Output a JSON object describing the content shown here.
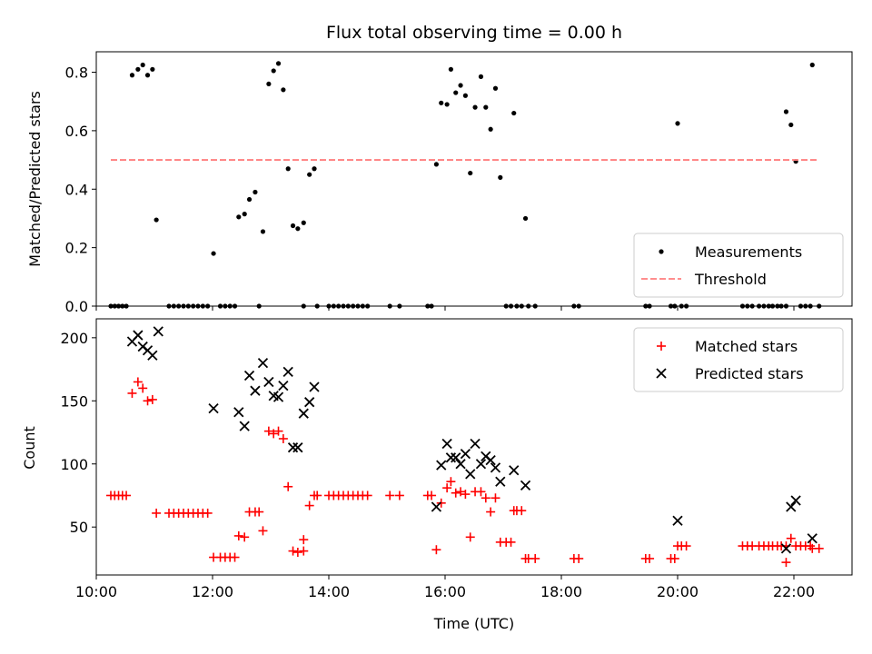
{
  "chart_data": [
    {
      "type": "scatter",
      "title": "Flux total observing time = 0.00 h",
      "xlabel": "",
      "ylabel": "Matched/Predicted stars",
      "xlim": [
        "10:00",
        "23:00"
      ],
      "ylim": [
        0,
        0.87
      ],
      "yticks": [
        0.0,
        0.2,
        0.4,
        0.6,
        0.8
      ],
      "ytick_labels": [
        "0.0",
        "0.2",
        "0.4",
        "0.6",
        "0.8"
      ],
      "legend_position": "lower-right",
      "series": [
        {
          "name": "Measurements",
          "marker": "dot",
          "color": "#000000",
          "points": [
            [
              "10:15",
              0
            ],
            [
              "10:19",
              0
            ],
            [
              "10:23",
              0
            ],
            [
              "10:27",
              0
            ],
            [
              "10:31",
              0
            ],
            [
              "10:37",
              0.79
            ],
            [
              "10:43",
              0.81
            ],
            [
              "10:48",
              0.825
            ],
            [
              "10:53",
              0.79
            ],
            [
              "10:58",
              0.81
            ],
            [
              "11:02",
              0.295
            ],
            [
              "11:15",
              0
            ],
            [
              "11:20",
              0
            ],
            [
              "11:25",
              0
            ],
            [
              "11:30",
              0
            ],
            [
              "11:35",
              0
            ],
            [
              "11:40",
              0
            ],
            [
              "11:45",
              0
            ],
            [
              "11:50",
              0
            ],
            [
              "11:55",
              0
            ],
            [
              "12:01",
              0.18
            ],
            [
              "12:08",
              0
            ],
            [
              "12:13",
              0
            ],
            [
              "12:18",
              0
            ],
            [
              "12:23",
              0
            ],
            [
              "12:27",
              0.305
            ],
            [
              "12:33",
              0.315
            ],
            [
              "12:38",
              0.365
            ],
            [
              "12:44",
              0.39
            ],
            [
              "12:48",
              0
            ],
            [
              "12:52",
              0.255
            ],
            [
              "12:58",
              0.76
            ],
            [
              "13:03",
              0.805
            ],
            [
              "13:08",
              0.83
            ],
            [
              "13:13",
              0.74
            ],
            [
              "13:18",
              0.47
            ],
            [
              "13:23",
              0.275
            ],
            [
              "13:28",
              0.265
            ],
            [
              "13:34",
              0.285
            ],
            [
              "13:34",
              0
            ],
            [
              "13:40",
              0.45
            ],
            [
              "13:45",
              0.47
            ],
            [
              "13:48",
              0
            ],
            [
              "14:00",
              0
            ],
            [
              "14:05",
              0
            ],
            [
              "14:10",
              0
            ],
            [
              "14:15",
              0
            ],
            [
              "14:20",
              0
            ],
            [
              "14:25",
              0
            ],
            [
              "14:30",
              0
            ],
            [
              "14:35",
              0
            ],
            [
              "14:40",
              0
            ],
            [
              "15:03",
              0
            ],
            [
              "15:13",
              0
            ],
            [
              "15:42",
              0
            ],
            [
              "15:46",
              0
            ],
            [
              "15:51",
              0.485
            ],
            [
              "15:56",
              0.695
            ],
            [
              "16:02",
              0.69
            ],
            [
              "16:06",
              0.81
            ],
            [
              "16:11",
              0.73
            ],
            [
              "16:16",
              0.755
            ],
            [
              "16:21",
              0.72
            ],
            [
              "16:26",
              0.455
            ],
            [
              "16:31",
              0.68
            ],
            [
              "16:37",
              0.785
            ],
            [
              "16:42",
              0.68
            ],
            [
              "16:47",
              0.605
            ],
            [
              "16:52",
              0.745
            ],
            [
              "16:57",
              0.44
            ],
            [
              "17:03",
              0
            ],
            [
              "17:08",
              0
            ],
            [
              "17:11",
              0.66
            ],
            [
              "17:14",
              0
            ],
            [
              "17:19",
              0
            ],
            [
              "17:23",
              0.3
            ],
            [
              "17:26",
              0
            ],
            [
              "17:33",
              0
            ],
            [
              "18:13",
              0
            ],
            [
              "18:18",
              0
            ],
            [
              "19:27",
              0
            ],
            [
              "19:31",
              0
            ],
            [
              "19:53",
              0
            ],
            [
              "19:57",
              0
            ],
            [
              "20:00",
              0.625
            ],
            [
              "20:04",
              0
            ],
            [
              "20:09",
              0
            ],
            [
              "21:07",
              0
            ],
            [
              "21:12",
              0
            ],
            [
              "21:17",
              0
            ],
            [
              "21:24",
              0
            ],
            [
              "21:29",
              0
            ],
            [
              "21:34",
              0
            ],
            [
              "21:38",
              0
            ],
            [
              "21:43",
              0
            ],
            [
              "21:47",
              0
            ],
            [
              "21:52",
              0
            ],
            [
              "21:52",
              0.665
            ],
            [
              "21:57",
              0.62
            ],
            [
              "22:02",
              0.495
            ],
            [
              "22:07",
              0
            ],
            [
              "22:12",
              0
            ],
            [
              "22:17",
              0
            ],
            [
              "22:19",
              0.825
            ],
            [
              "22:26",
              0
            ]
          ]
        },
        {
          "name": "Threshold",
          "marker": "dashed-line",
          "color": "#ff7f7f",
          "points": [
            [
              "10:15",
              0.5
            ],
            [
              "22:25",
              0.5
            ]
          ]
        }
      ]
    },
    {
      "type": "scatter",
      "title": "",
      "xlabel": "Time (UTC)",
      "ylabel": "Count",
      "xlim": [
        "10:00",
        "23:00"
      ],
      "ylim": [
        12,
        215
      ],
      "xticks": [
        "10:00",
        "12:00",
        "14:00",
        "16:00",
        "18:00",
        "20:00",
        "22:00"
      ],
      "yticks": [
        50,
        100,
        150,
        200
      ],
      "ytick_labels": [
        "50",
        "100",
        "150",
        "200"
      ],
      "legend_position": "upper-right",
      "series": [
        {
          "name": "Matched stars",
          "marker": "plus",
          "color": "#ff0000",
          "points": [
            [
              "10:15",
              75
            ],
            [
              "10:19",
              75
            ],
            [
              "10:23",
              75
            ],
            [
              "10:27",
              75
            ],
            [
              "10:31",
              75
            ],
            [
              "10:37",
              156
            ],
            [
              "10:43",
              165
            ],
            [
              "10:48",
              160
            ],
            [
              "10:53",
              150
            ],
            [
              "10:58",
              151
            ],
            [
              "11:02",
              61
            ],
            [
              "11:15",
              61
            ],
            [
              "11:20",
              61
            ],
            [
              "11:25",
              61
            ],
            [
              "11:30",
              61
            ],
            [
              "11:35",
              61
            ],
            [
              "11:40",
              61
            ],
            [
              "11:45",
              61
            ],
            [
              "11:50",
              61
            ],
            [
              "11:55",
              61
            ],
            [
              "12:01",
              26
            ],
            [
              "12:08",
              26
            ],
            [
              "12:13",
              26
            ],
            [
              "12:18",
              26
            ],
            [
              "12:23",
              26
            ],
            [
              "12:27",
              43
            ],
            [
              "12:33",
              42
            ],
            [
              "12:38",
              62
            ],
            [
              "12:44",
              62
            ],
            [
              "12:48",
              62
            ],
            [
              "12:52",
              47
            ],
            [
              "12:58",
              126
            ],
            [
              "13:03",
              124
            ],
            [
              "13:08",
              126
            ],
            [
              "13:13",
              120
            ],
            [
              "13:18",
              82
            ],
            [
              "13:23",
              31
            ],
            [
              "13:28",
              30
            ],
            [
              "13:34",
              40
            ],
            [
              "13:34",
              31
            ],
            [
              "13:40",
              67
            ],
            [
              "13:45",
              75
            ],
            [
              "13:48",
              75
            ],
            [
              "14:00",
              75
            ],
            [
              "14:05",
              75
            ],
            [
              "14:10",
              75
            ],
            [
              "14:15",
              75
            ],
            [
              "14:20",
              75
            ],
            [
              "14:25",
              75
            ],
            [
              "14:30",
              75
            ],
            [
              "14:35",
              75
            ],
            [
              "14:40",
              75
            ],
            [
              "15:03",
              75
            ],
            [
              "15:13",
              75
            ],
            [
              "15:42",
              75
            ],
            [
              "15:46",
              75
            ],
            [
              "15:51",
              32
            ],
            [
              "15:56",
              69
            ],
            [
              "16:02",
              81
            ],
            [
              "16:06",
              86
            ],
            [
              "16:11",
              77
            ],
            [
              "16:16",
              78
            ],
            [
              "16:21",
              76
            ],
            [
              "16:26",
              42
            ],
            [
              "16:31",
              78
            ],
            [
              "16:37",
              78
            ],
            [
              "16:42",
              73
            ],
            [
              "16:47",
              62
            ],
            [
              "16:52",
              73
            ],
            [
              "16:57",
              38
            ],
            [
              "17:03",
              38
            ],
            [
              "17:08",
              38
            ],
            [
              "17:11",
              63
            ],
            [
              "17:14",
              63
            ],
            [
              "17:19",
              63
            ],
            [
              "17:23",
              25
            ],
            [
              "17:26",
              25
            ],
            [
              "17:33",
              25
            ],
            [
              "18:13",
              25
            ],
            [
              "18:18",
              25
            ],
            [
              "19:27",
              25
            ],
            [
              "19:31",
              25
            ],
            [
              "19:53",
              25
            ],
            [
              "19:57",
              25
            ],
            [
              "20:00",
              35
            ],
            [
              "20:04",
              35
            ],
            [
              "20:09",
              35
            ],
            [
              "21:07",
              35
            ],
            [
              "21:12",
              35
            ],
            [
              "21:17",
              35
            ],
            [
              "21:24",
              35
            ],
            [
              "21:29",
              35
            ],
            [
              "21:34",
              35
            ],
            [
              "21:38",
              35
            ],
            [
              "21:43",
              35
            ],
            [
              "21:47",
              35
            ],
            [
              "21:52",
              35
            ],
            [
              "21:52",
              22
            ],
            [
              "21:57",
              41
            ],
            [
              "22:02",
              35
            ],
            [
              "22:07",
              35
            ],
            [
              "22:12",
              35
            ],
            [
              "22:17",
              35
            ],
            [
              "22:19",
              33
            ],
            [
              "22:26",
              33
            ]
          ]
        },
        {
          "name": "Predicted stars",
          "marker": "x",
          "color": "#000000",
          "points": [
            [
              "10:37",
              197
            ],
            [
              "10:43",
              202
            ],
            [
              "10:48",
              193
            ],
            [
              "10:53",
              190
            ],
            [
              "10:58",
              186
            ],
            [
              "11:04",
              205
            ],
            [
              "12:01",
              144
            ],
            [
              "12:27",
              141
            ],
            [
              "12:33",
              130
            ],
            [
              "12:38",
              170
            ],
            [
              "12:44",
              158
            ],
            [
              "12:52",
              180
            ],
            [
              "12:58",
              165
            ],
            [
              "13:03",
              154
            ],
            [
              "13:08",
              153
            ],
            [
              "13:13",
              162
            ],
            [
              "13:18",
              173
            ],
            [
              "13:23",
              113
            ],
            [
              "13:28",
              113
            ],
            [
              "13:34",
              140
            ],
            [
              "13:40",
              149
            ],
            [
              "13:45",
              161
            ],
            [
              "15:51",
              66
            ],
            [
              "15:56",
              99
            ],
            [
              "16:02",
              116
            ],
            [
              "16:06",
              105
            ],
            [
              "16:11",
              105
            ],
            [
              "16:16",
              100
            ],
            [
              "16:21",
              108
            ],
            [
              "16:26",
              92
            ],
            [
              "16:31",
              116
            ],
            [
              "16:37",
              100
            ],
            [
              "16:42",
              106
            ],
            [
              "16:47",
              103
            ],
            [
              "16:52",
              97
            ],
            [
              "16:57",
              86
            ],
            [
              "17:11",
              95
            ],
            [
              "17:23",
              83
            ],
            [
              "20:00",
              55
            ],
            [
              "21:57",
              66
            ],
            [
              "22:02",
              71
            ],
            [
              "22:19",
              41
            ],
            [
              "21:52",
              33
            ]
          ]
        }
      ]
    }
  ]
}
